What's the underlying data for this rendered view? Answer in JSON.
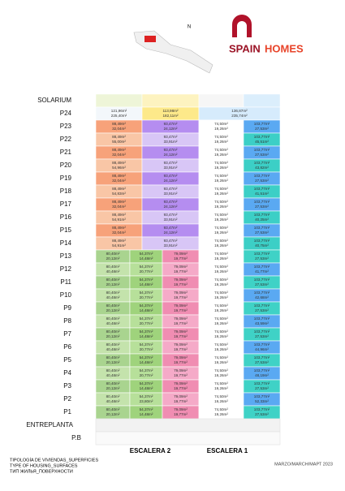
{
  "logo": {
    "word1": "SPAIN",
    "word2": "HOMES"
  },
  "solarium": "SOLARIUM",
  "top_floor": {
    "label": "P24",
    "units": [
      [
        "121,96m²",
        "225,40m²"
      ],
      [
        "113,98m²",
        "182,11m²"
      ],
      [
        "136,87m²",
        "235,74m²"
      ]
    ]
  },
  "upper_floors": [
    {
      "label": "P23",
      "units": [
        [
          "88,49m²",
          "32,04m²"
        ],
        [
          "93,47m²",
          "24,12m²"
        ],
        [
          "74,50m²",
          "19,26m²"
        ],
        [
          "103,77m²",
          "27,53m²"
        ]
      ]
    },
    {
      "label": "P22",
      "units": [
        [
          "88,49m²",
          "55,00m²"
        ],
        [
          "93,47m²",
          "33,91m²"
        ],
        [
          "74,50m²",
          "19,26m²"
        ],
        [
          "103,77m²",
          "45,51m²"
        ]
      ]
    },
    {
      "label": "P21",
      "units": [
        [
          "88,49m²",
          "32,04m²"
        ],
        [
          "93,47m²",
          "24,12m²"
        ],
        [
          "74,50m²",
          "19,26m²"
        ],
        [
          "103,77m²",
          "27,53m²"
        ]
      ]
    },
    {
      "label": "P20",
      "units": [
        [
          "88,49m²",
          "54,96m²"
        ],
        [
          "93,47m²",
          "33,91m²"
        ],
        [
          "74,50m²",
          "19,26m²"
        ],
        [
          "103,77m²",
          "43,82m²"
        ]
      ]
    },
    {
      "label": "P19",
      "units": [
        [
          "88,49m²",
          "32,04m²"
        ],
        [
          "93,47m²",
          "24,12m²"
        ],
        [
          "74,50m²",
          "19,26m²"
        ],
        [
          "103,77m²",
          "27,53m²"
        ]
      ]
    },
    {
      "label": "P18",
      "units": [
        [
          "88,49m²",
          "54,83m²"
        ],
        [
          "93,47m²",
          "33,91m²"
        ],
        [
          "74,50m²",
          "19,26m²"
        ],
        [
          "103,77m²",
          "41,51m²"
        ]
      ]
    },
    {
      "label": "P17",
      "units": [
        [
          "88,49m²",
          "32,04m²"
        ],
        [
          "93,47m²",
          "24,12m²"
        ],
        [
          "74,50m²",
          "19,26m²"
        ],
        [
          "103,77m²",
          "27,53m²"
        ]
      ]
    },
    {
      "label": "P16",
      "units": [
        [
          "88,49m²",
          "54,91m²"
        ],
        [
          "93,47m²",
          "33,91m²"
        ],
        [
          "74,50m²",
          "19,26m²"
        ],
        [
          "103,77m²",
          "40,25m²"
        ]
      ]
    },
    {
      "label": "P15",
      "units": [
        [
          "88,49m²",
          "32,04m²"
        ],
        [
          "93,47m²",
          "24,12m²"
        ],
        [
          "74,50m²",
          "19,26m²"
        ],
        [
          "103,77m²",
          "27,53m²"
        ]
      ]
    },
    {
      "label": "P14",
      "units": [
        [
          "88,49m²",
          "54,91m²"
        ],
        [
          "93,47m²",
          "33,91m²"
        ],
        [
          "74,50m²",
          "19,26m²"
        ],
        [
          "103,77m²",
          "40,75m²"
        ]
      ]
    }
  ],
  "lower_floors": [
    {
      "label": "P13",
      "units": [
        [
          "80,40m²",
          "20,12m²"
        ],
        [
          "54,37m²",
          "14,48m²"
        ],
        [
          "79,09m²",
          "19,77m²"
        ],
        [
          "74,50m²",
          "19,26m²"
        ],
        [
          "103,77m²",
          "27,53m²"
        ]
      ]
    },
    {
      "label": "P12",
      "units": [
        [
          "80,40m²",
          "40,48m²"
        ],
        [
          "54,37m²",
          "20,77m²"
        ],
        [
          "79,09m²",
          "19,77m²"
        ],
        [
          "74,50m²",
          "19,26m²"
        ],
        [
          "103,77m²",
          "41,77m²"
        ]
      ]
    },
    {
      "label": "P11",
      "units": [
        [
          "80,40m²",
          "20,12m²"
        ],
        [
          "54,37m²",
          "14,48m²"
        ],
        [
          "79,09m²",
          "19,77m²"
        ],
        [
          "74,50m²",
          "19,26m²"
        ],
        [
          "103,77m²",
          "27,53m²"
        ]
      ]
    },
    {
      "label": "P10",
      "units": [
        [
          "80,40m²",
          "40,48m²"
        ],
        [
          "54,37m²",
          "20,77m²"
        ],
        [
          "79,09m²",
          "19,77m²"
        ],
        [
          "74,50m²",
          "19,26m²"
        ],
        [
          "103,77m²",
          "42,68m²"
        ]
      ]
    },
    {
      "label": "P9",
      "units": [
        [
          "80,40m²",
          "20,12m²"
        ],
        [
          "54,37m²",
          "14,48m²"
        ],
        [
          "79,09m²",
          "19,77m²"
        ],
        [
          "74,50m²",
          "19,26m²"
        ],
        [
          "103,77m²",
          "27,53m²"
        ]
      ]
    },
    {
      "label": "P8",
      "units": [
        [
          "80,40m²",
          "40,48m²"
        ],
        [
          "54,37m²",
          "20,77m²"
        ],
        [
          "79,09m²",
          "19,77m²"
        ],
        [
          "74,50m²",
          "19,26m²"
        ],
        [
          "103,77m²",
          "43,59m²"
        ]
      ]
    },
    {
      "label": "P7",
      "units": [
        [
          "80,40m²",
          "20,12m²"
        ],
        [
          "54,37m²",
          "14,48m²"
        ],
        [
          "79,09m²",
          "19,77m²"
        ],
        [
          "74,50m²",
          "19,26m²"
        ],
        [
          "103,77m²",
          "27,53m²"
        ]
      ]
    },
    {
      "label": "P6",
      "units": [
        [
          "80,40m²",
          "40,48m²"
        ],
        [
          "54,37m²",
          "20,77m²"
        ],
        [
          "79,09m²",
          "19,77m²"
        ],
        [
          "74,50m²",
          "19,26m²"
        ],
        [
          "103,77m²",
          "44,96m²"
        ]
      ]
    },
    {
      "label": "P5",
      "units": [
        [
          "80,40m²",
          "20,12m²"
        ],
        [
          "54,37m²",
          "14,48m²"
        ],
        [
          "79,09m²",
          "19,77m²"
        ],
        [
          "74,50m²",
          "19,26m²"
        ],
        [
          "103,77m²",
          "27,53m²"
        ]
      ]
    },
    {
      "label": "P4",
      "units": [
        [
          "80,40m²",
          "40,48m²"
        ],
        [
          "54,37m²",
          "20,77m²"
        ],
        [
          "79,09m²",
          "19,77m²"
        ],
        [
          "74,50m²",
          "19,26m²"
        ],
        [
          "103,77m²",
          "48,19m²"
        ]
      ]
    },
    {
      "label": "P3",
      "units": [
        [
          "80,40m²",
          "20,12m²"
        ],
        [
          "54,37m²",
          "14,48m²"
        ],
        [
          "79,09m²",
          "19,77m²"
        ],
        [
          "74,50m²",
          "19,26m²"
        ],
        [
          "103,77m²",
          "27,53m²"
        ]
      ]
    },
    {
      "label": "P2",
      "units": [
        [
          "80,40m²",
          "40,48m²"
        ],
        [
          "54,37m²",
          "23,80m²"
        ],
        [
          "79,09m²",
          "19,77m²"
        ],
        [
          "74,50m²",
          "19,26m²"
        ],
        [
          "103,77m²",
          "52,33m²"
        ]
      ]
    },
    {
      "label": "P1",
      "units": [
        [
          "80,40m²",
          "20,12m²"
        ],
        [
          "54,37m²",
          "14,48m²"
        ],
        [
          "79,09m²",
          "19,77m²"
        ],
        [
          "74,50m²",
          "19,26m²"
        ],
        [
          "103,77m²",
          "27,53m²"
        ]
      ]
    }
  ],
  "entreplanta": "ENTREPLANTA",
  "ground": "P.B",
  "stairs": [
    "ESCALERA 2",
    "ESCALERA 1"
  ],
  "date": "MARZO/MARCH/МАРТ 2023",
  "legend": [
    "TIPOLOGÍA DE VIVIENDAS_SUPERFICIES",
    "TYPE OF HOUSING_SURFACES",
    "ТИП ЖИЛЬЯ_ПОВЕРХНОСТИ"
  ]
}
